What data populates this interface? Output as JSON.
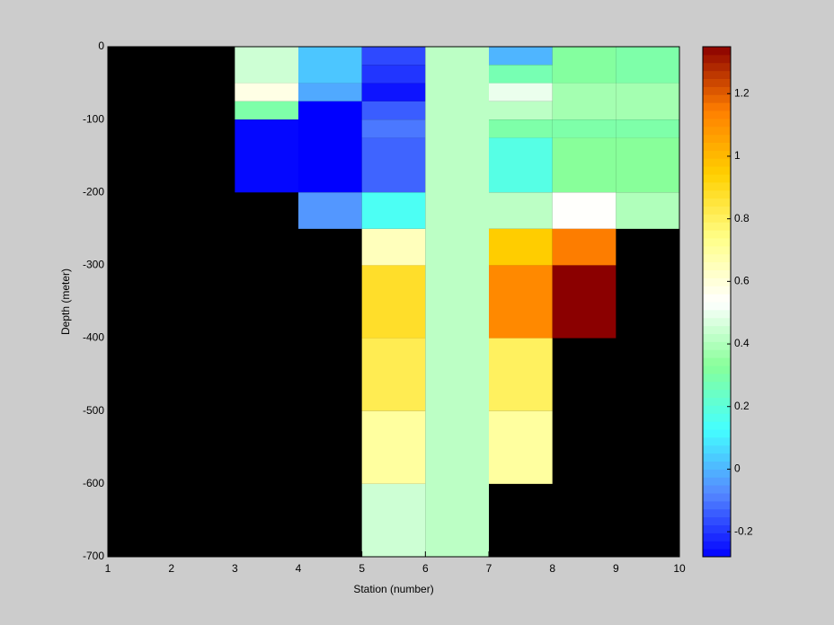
{
  "chart_data": {
    "type": "heatmap",
    "xlabel": "Station (number)",
    "ylabel": "Depth (meter)",
    "xlim": [
      1,
      10
    ],
    "xticks": [
      1,
      2,
      3,
      4,
      5,
      6,
      7,
      8,
      9,
      10
    ],
    "ylim": [
      -700,
      0
    ],
    "yticks": [
      -700,
      -600,
      -500,
      -400,
      -300,
      -200,
      -100,
      0
    ],
    "clim": [
      -0.28,
      1.35
    ],
    "cticks": [
      -0.2,
      0,
      0.2,
      0.4,
      0.6,
      0.8,
      1,
      1.2
    ],
    "colormap": [
      "#0000ff",
      "#5588ff",
      "#44ffff",
      "#88ff99",
      "#ffffff",
      "#ffff88",
      "#ffd000",
      "#ff7f00",
      "#8b0000"
    ],
    "background": "#000000",
    "cells": [
      {
        "x": [
          3,
          4
        ],
        "y": [
          0,
          -50
        ],
        "value": 0.45
      },
      {
        "x": [
          3,
          4
        ],
        "y": [
          -50,
          -75
        ],
        "value": 0.58
      },
      {
        "x": [
          3,
          4
        ],
        "y": [
          -75,
          -100
        ],
        "value": 0.3
      },
      {
        "x": [
          3,
          4
        ],
        "y": [
          -100,
          -200
        ],
        "value": -0.27
      },
      {
        "x": [
          4,
          5
        ],
        "y": [
          0,
          -50
        ],
        "value": 0.03
      },
      {
        "x": [
          4,
          5
        ],
        "y": [
          -50,
          -75
        ],
        "value": -0.02
      },
      {
        "x": [
          4,
          5
        ],
        "y": [
          -75,
          -200
        ],
        "value": -0.28
      },
      {
        "x": [
          4,
          5
        ],
        "y": [
          -200,
          -250
        ],
        "value": -0.05
      },
      {
        "x": [
          5,
          6
        ],
        "y": [
          0,
          -25
        ],
        "value": -0.17
      },
      {
        "x": [
          5,
          6
        ],
        "y": [
          -25,
          -50
        ],
        "value": -0.2
      },
      {
        "x": [
          5,
          6
        ],
        "y": [
          -50,
          -75
        ],
        "value": -0.25
      },
      {
        "x": [
          5,
          6
        ],
        "y": [
          -75,
          -100
        ],
        "value": -0.14
      },
      {
        "x": [
          5,
          6
        ],
        "y": [
          -100,
          -125
        ],
        "value": -0.1
      },
      {
        "x": [
          5,
          6
        ],
        "y": [
          -125,
          -200
        ],
        "value": -0.13
      },
      {
        "x": [
          5,
          6
        ],
        "y": [
          -200,
          -250
        ],
        "value": 0.15
      },
      {
        "x": [
          5,
          6
        ],
        "y": [
          -250,
          -300
        ],
        "value": 0.65
      },
      {
        "x": [
          5,
          6
        ],
        "y": [
          -300,
          -400
        ],
        "value": 0.88
      },
      {
        "x": [
          5,
          6
        ],
        "y": [
          -400,
          -500
        ],
        "value": 0.82
      },
      {
        "x": [
          5,
          6
        ],
        "y": [
          -500,
          -600
        ],
        "value": 0.7
      },
      {
        "x": [
          5,
          6
        ],
        "y": [
          -600,
          -700
        ],
        "value": 0.45
      },
      {
        "x": [
          6,
          7
        ],
        "y": [
          0,
          -700
        ],
        "value": 0.42
      },
      {
        "x": [
          7,
          8
        ],
        "y": [
          0,
          -25
        ],
        "value": 0.0
      },
      {
        "x": [
          7,
          8
        ],
        "y": [
          -25,
          -50
        ],
        "value": 0.28
      },
      {
        "x": [
          7,
          8
        ],
        "y": [
          -50,
          -75
        ],
        "value": 0.5
      },
      {
        "x": [
          7,
          8
        ],
        "y": [
          -75,
          -100
        ],
        "value": 0.42
      },
      {
        "x": [
          7,
          8
        ],
        "y": [
          -100,
          -125
        ],
        "value": 0.3
      },
      {
        "x": [
          7,
          8
        ],
        "y": [
          -125,
          -200
        ],
        "value": 0.18
      },
      {
        "x": [
          7,
          8
        ],
        "y": [
          -200,
          -250
        ],
        "value": 0.42
      },
      {
        "x": [
          7,
          8
        ],
        "y": [
          -250,
          -300
        ],
        "value": 0.95
      },
      {
        "x": [
          7,
          8
        ],
        "y": [
          -300,
          -400
        ],
        "value": 1.12
      },
      {
        "x": [
          7,
          8
        ],
        "y": [
          -400,
          -500
        ],
        "value": 0.8
      },
      {
        "x": [
          7,
          8
        ],
        "y": [
          -500,
          -600
        ],
        "value": 0.7
      },
      {
        "x": [
          8,
          9
        ],
        "y": [
          0,
          -50
        ],
        "value": 0.32
      },
      {
        "x": [
          8,
          9
        ],
        "y": [
          -50,
          -100
        ],
        "value": 0.38
      },
      {
        "x": [
          8,
          9
        ],
        "y": [
          -100,
          -125
        ],
        "value": 0.3
      },
      {
        "x": [
          8,
          9
        ],
        "y": [
          -125,
          -200
        ],
        "value": 0.33
      },
      {
        "x": [
          8,
          9
        ],
        "y": [
          -200,
          -250
        ],
        "value": 0.54
      },
      {
        "x": [
          8,
          9
        ],
        "y": [
          -250,
          -300
        ],
        "value": 1.15
      },
      {
        "x": [
          8,
          9
        ],
        "y": [
          -300,
          -400
        ],
        "value": 1.35
      },
      {
        "x": [
          9,
          10
        ],
        "y": [
          0,
          -50
        ],
        "value": 0.3
      },
      {
        "x": [
          9,
          10
        ],
        "y": [
          -50,
          -100
        ],
        "value": 0.38
      },
      {
        "x": [
          9,
          10
        ],
        "y": [
          -100,
          -125
        ],
        "value": 0.3
      },
      {
        "x": [
          9,
          10
        ],
        "y": [
          -125,
          -200
        ],
        "value": 0.33
      },
      {
        "x": [
          9,
          10
        ],
        "y": [
          -200,
          -250
        ],
        "value": 0.4
      }
    ]
  }
}
